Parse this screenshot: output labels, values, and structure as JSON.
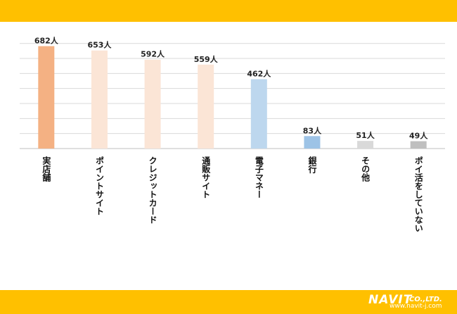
{
  "chart_data": {
    "type": "bar",
    "categories": [
      "実店舗",
      "ポイントサイト",
      "クレジットカード",
      "通販サイト",
      "電子マネー",
      "銀行",
      "その他",
      "ポイ活をしていない"
    ],
    "values": [
      682,
      653,
      592,
      559,
      462,
      83,
      51,
      49
    ],
    "value_labels": [
      "682人",
      "653人",
      "592人",
      "559人",
      "462人",
      "83人",
      "51人",
      "49人"
    ],
    "bar_colors": [
      "#f4b183",
      "#fbe5d6",
      "#fbe5d6",
      "#fbe5d6",
      "#bdd7ee",
      "#9dc3e6",
      "#d9d9d9",
      "#bfbfbf"
    ],
    "ylim": [
      0,
      700
    ],
    "grid": true,
    "title": "",
    "xlabel": "",
    "ylabel": ""
  },
  "branding": {
    "logo_text": "NAVIT",
    "logo_suffix": "CO.,LTD.",
    "url": "www.navit-j.com"
  },
  "colors": {
    "band": "#ffc000",
    "gridline": "#d9d9d9"
  }
}
